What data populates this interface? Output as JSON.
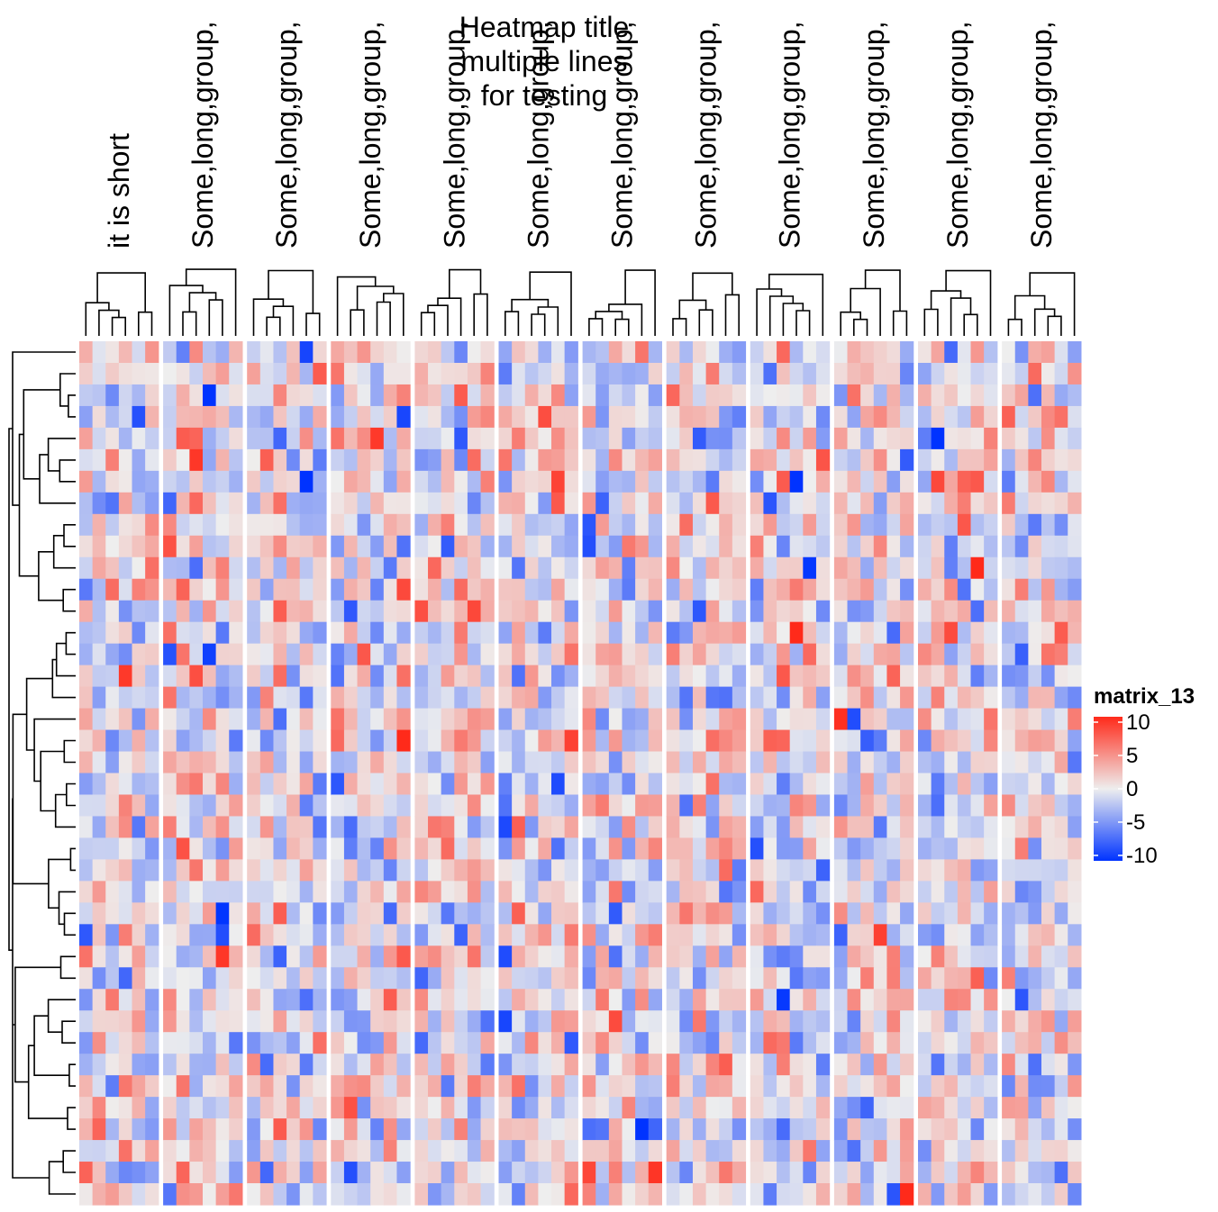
{
  "chart_data": {
    "type": "heatmap",
    "title_lines": [
      "Heatmap title",
      "multiple lines",
      "for testing"
    ],
    "column_group_titles": [
      "it is short",
      "Some,long,group,",
      "Some,long,group,",
      "Some,long,group,",
      "Some,long,group,",
      "Some,long,group,",
      "Some,long,group,",
      "Some,long,group,",
      "Some,long,group,",
      "Some,long,group,",
      "Some,long,group,",
      "Some,long,group,"
    ],
    "columns_per_group": 6,
    "n_rows": 40,
    "row_dendrogram": true,
    "column_dendrograms": true,
    "value_range": [
      -10,
      10
    ],
    "data_note": "random normal matrix, values roughly between -10 and 10",
    "legend": {
      "title": "matrix_13",
      "ticks": [
        10,
        5,
        0,
        -5,
        -10
      ],
      "tick_labels": [
        "10",
        "5",
        "0",
        "-5",
        "-10"
      ],
      "colors": {
        "low": "#0033ff",
        "mid": "#eeeeee",
        "high": "#ff2a1a"
      }
    }
  }
}
